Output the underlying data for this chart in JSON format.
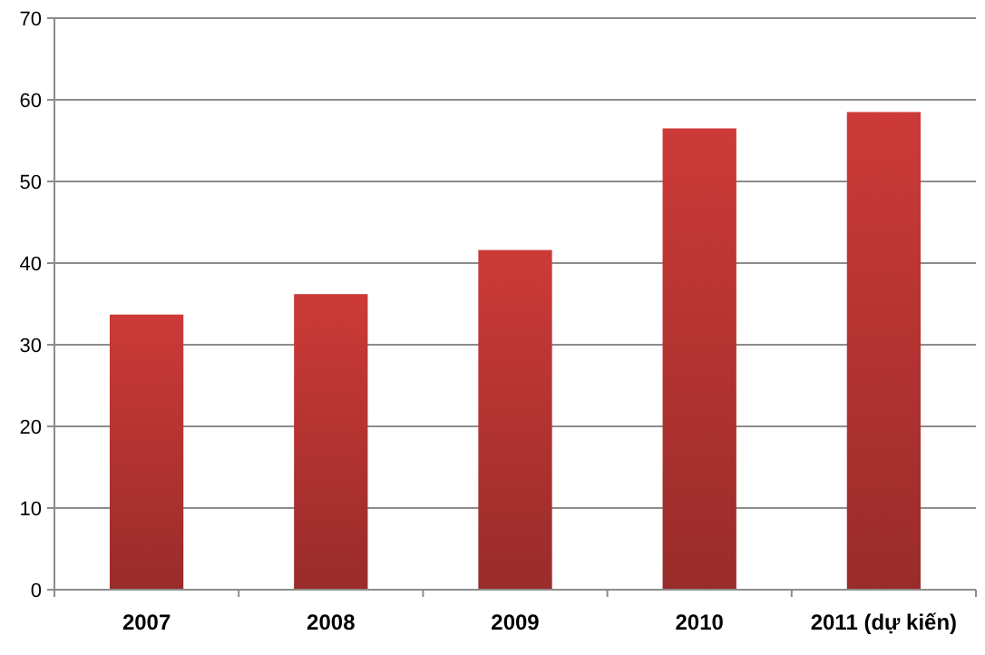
{
  "chart_data": {
    "type": "bar",
    "categories": [
      "2007",
      "2008",
      "2009",
      "2010",
      "2011 (dự kiến)"
    ],
    "values": [
      33.7,
      36.2,
      41.6,
      56.5,
      58.5
    ],
    "color": "#cc3a38",
    "ylim": [
      0,
      70
    ],
    "yticks": [
      0,
      10,
      20,
      30,
      40,
      50,
      60,
      70
    ],
    "grid": "y"
  }
}
